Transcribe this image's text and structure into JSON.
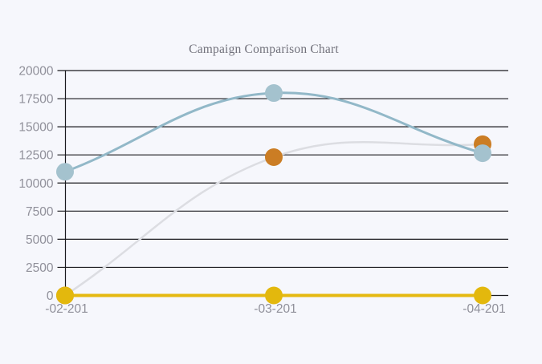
{
  "page": {
    "background_color": "#f6f7fc"
  },
  "chart_data": {
    "type": "line",
    "title": "Campaign Comparison Chart",
    "title_color": "#71717b",
    "xlabel": "",
    "ylabel": "",
    "categories": [
      "-02-201",
      "-03-201",
      "-04-201"
    ],
    "yticks": [
      "0",
      "2500",
      "5000",
      "7500",
      "10000",
      "12500",
      "15000",
      "17500",
      "20000"
    ],
    "ylim": [
      0,
      20000
    ],
    "grid": true,
    "legend_position": "none",
    "grid_color": "#1a1a1e",
    "tick_text_color": "#90909a",
    "series": [
      {
        "id": "gray-line-orange-points",
        "values": [
          0,
          12300,
          13450
        ],
        "line_color": "#dcdde2",
        "point_color": "#cb7d24"
      },
      {
        "id": "blue-line",
        "values": [
          11000,
          18000,
          12650
        ],
        "line_color": "#92b8c8",
        "point_color": "#a4c2ce"
      },
      {
        "id": "yellow-line",
        "values": [
          0,
          0,
          0
        ],
        "line_color": "#e5b911",
        "point_color": "#e3b80d"
      }
    ]
  }
}
